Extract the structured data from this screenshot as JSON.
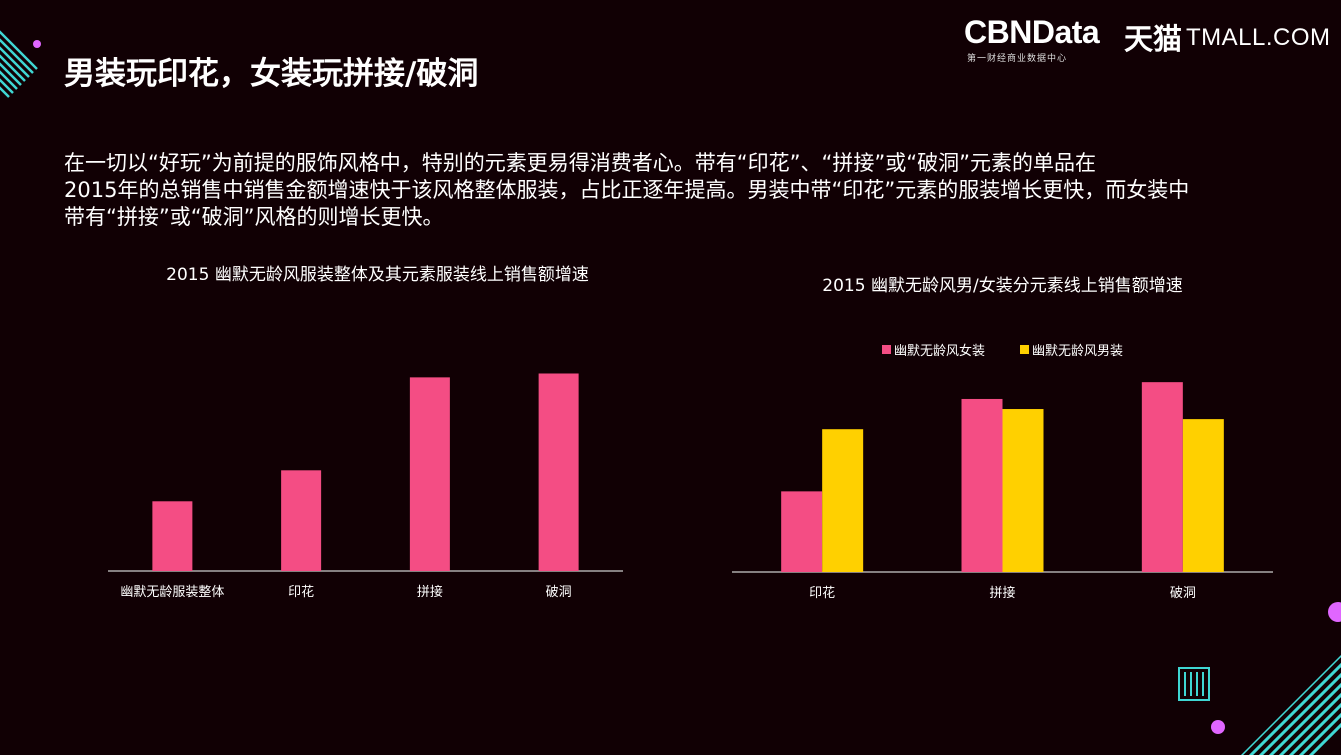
{
  "header": {
    "title": "男装玩印花，女装玩拼接/破洞",
    "brand_main": "CBNData",
    "brand_sub": "第一财经商业数据中心",
    "brand_tmall_cn": "天猫",
    "brand_tmall_en": "TMALL.COM"
  },
  "intro": {
    "lines": [
      "在一切以“好玩”为前提的服饰风格中，特别的元素更易得消费者心。带有“印花”、“拼接”或“破洞”元素的单品在",
      "2015年的总销售中销售金额增速快于该风格整体服装，占比正逐年提高。男装中带“印花”元素的服装增长更快，而女装中",
      "带有“拼接”或“破洞”风格的则增长更快。"
    ]
  },
  "colors": {
    "pink": "#f44d84",
    "yellow": "#ffd000",
    "bg": "#110004",
    "accent": "#3fd6d3",
    "magenta": "#e066ff"
  },
  "chart_data": [
    {
      "type": "bar",
      "title": "2015 幽默无龄风服装整体及其元素服装线上销售额增速",
      "categories": [
        "幽默无龄服装整体",
        "印花",
        "拼接",
        "破洞"
      ],
      "values": [
        36,
        52,
        100,
        102
      ],
      "ylim": [
        0,
        110
      ],
      "xlabel": "",
      "ylabel": "",
      "color": "#f44d84"
    },
    {
      "type": "bar",
      "title": "2015 幽默无龄风男/女装分元素线上销售额增速",
      "categories": [
        "印花",
        "拼接",
        "破洞"
      ],
      "series": [
        {
          "name": "幽默无龄风女装",
          "values": [
            48,
            103,
            113
          ],
          "color": "#f44d84"
        },
        {
          "name": "幽默无龄风男装",
          "values": [
            85,
            97,
            91
          ],
          "color": "#ffd000"
        }
      ],
      "ylim": [
        0,
        125
      ],
      "legend": "top-center"
    }
  ]
}
